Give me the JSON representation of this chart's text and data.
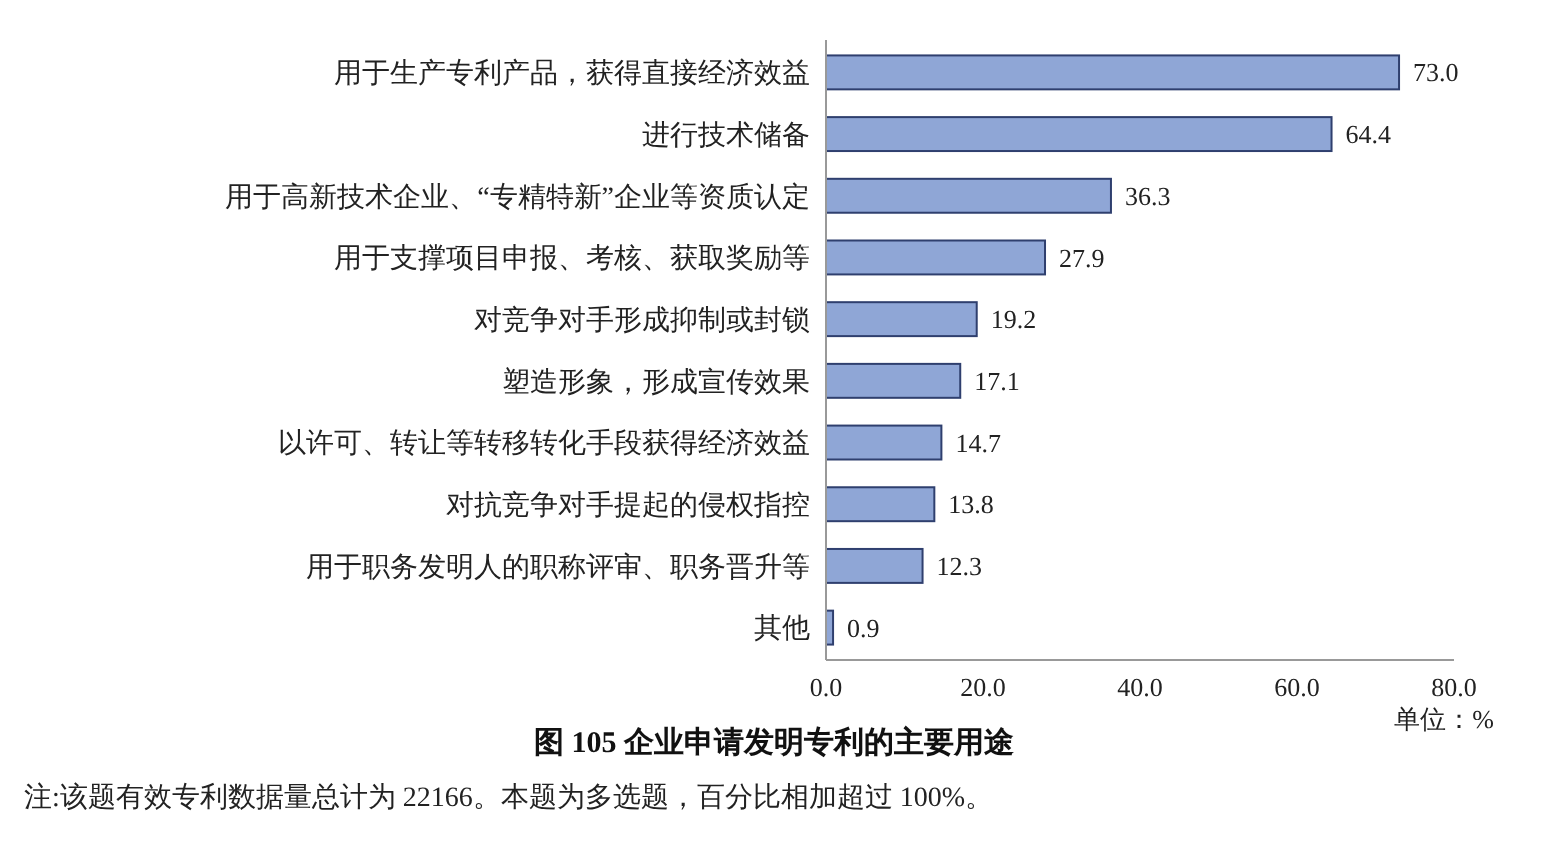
{
  "chart_data": {
    "type": "bar",
    "orientation": "horizontal",
    "title": "图 105  企业申请发明专利的主要用途",
    "xlabel": "单位：%",
    "annotations": [
      "注:该题有效专利数据量总计为 22166。本题为多选题，百分比相加超过 100%。"
    ],
    "categories": [
      "用于生产专利产品，获得直接经济效益",
      "进行技术储备",
      "用于高新技术企业、“专精特新”企业等资质认定",
      "用于支撑项目申报、考核、获取奖励等",
      "对竞争对手形成抑制或封锁",
      "塑造形象，形成宣传效果",
      "以许可、转让等转移转化手段获得经济效益",
      "对抗竞争对手提起的侵权指控",
      "用于职务发明人的职称评审、职务晋升等",
      "其他"
    ],
    "values": [
      73.0,
      64.4,
      36.3,
      27.9,
      19.2,
      17.1,
      14.7,
      13.8,
      12.3,
      0.9
    ],
    "value_labels": [
      "73.0",
      "64.4",
      "36.3",
      "27.9",
      "19.2",
      "17.1",
      "14.7",
      "13.8",
      "12.3",
      "0.9"
    ],
    "color": "#8fa6d6",
    "xlim": [
      0,
      80
    ],
    "xticks": [
      {
        "value": 0,
        "label": "0.0"
      },
      {
        "value": 20,
        "label": "20.0"
      },
      {
        "value": 40,
        "label": "40.0"
      },
      {
        "value": 60,
        "label": "60.0"
      },
      {
        "value": 80,
        "label": "80.0"
      }
    ],
    "grid": false
  }
}
